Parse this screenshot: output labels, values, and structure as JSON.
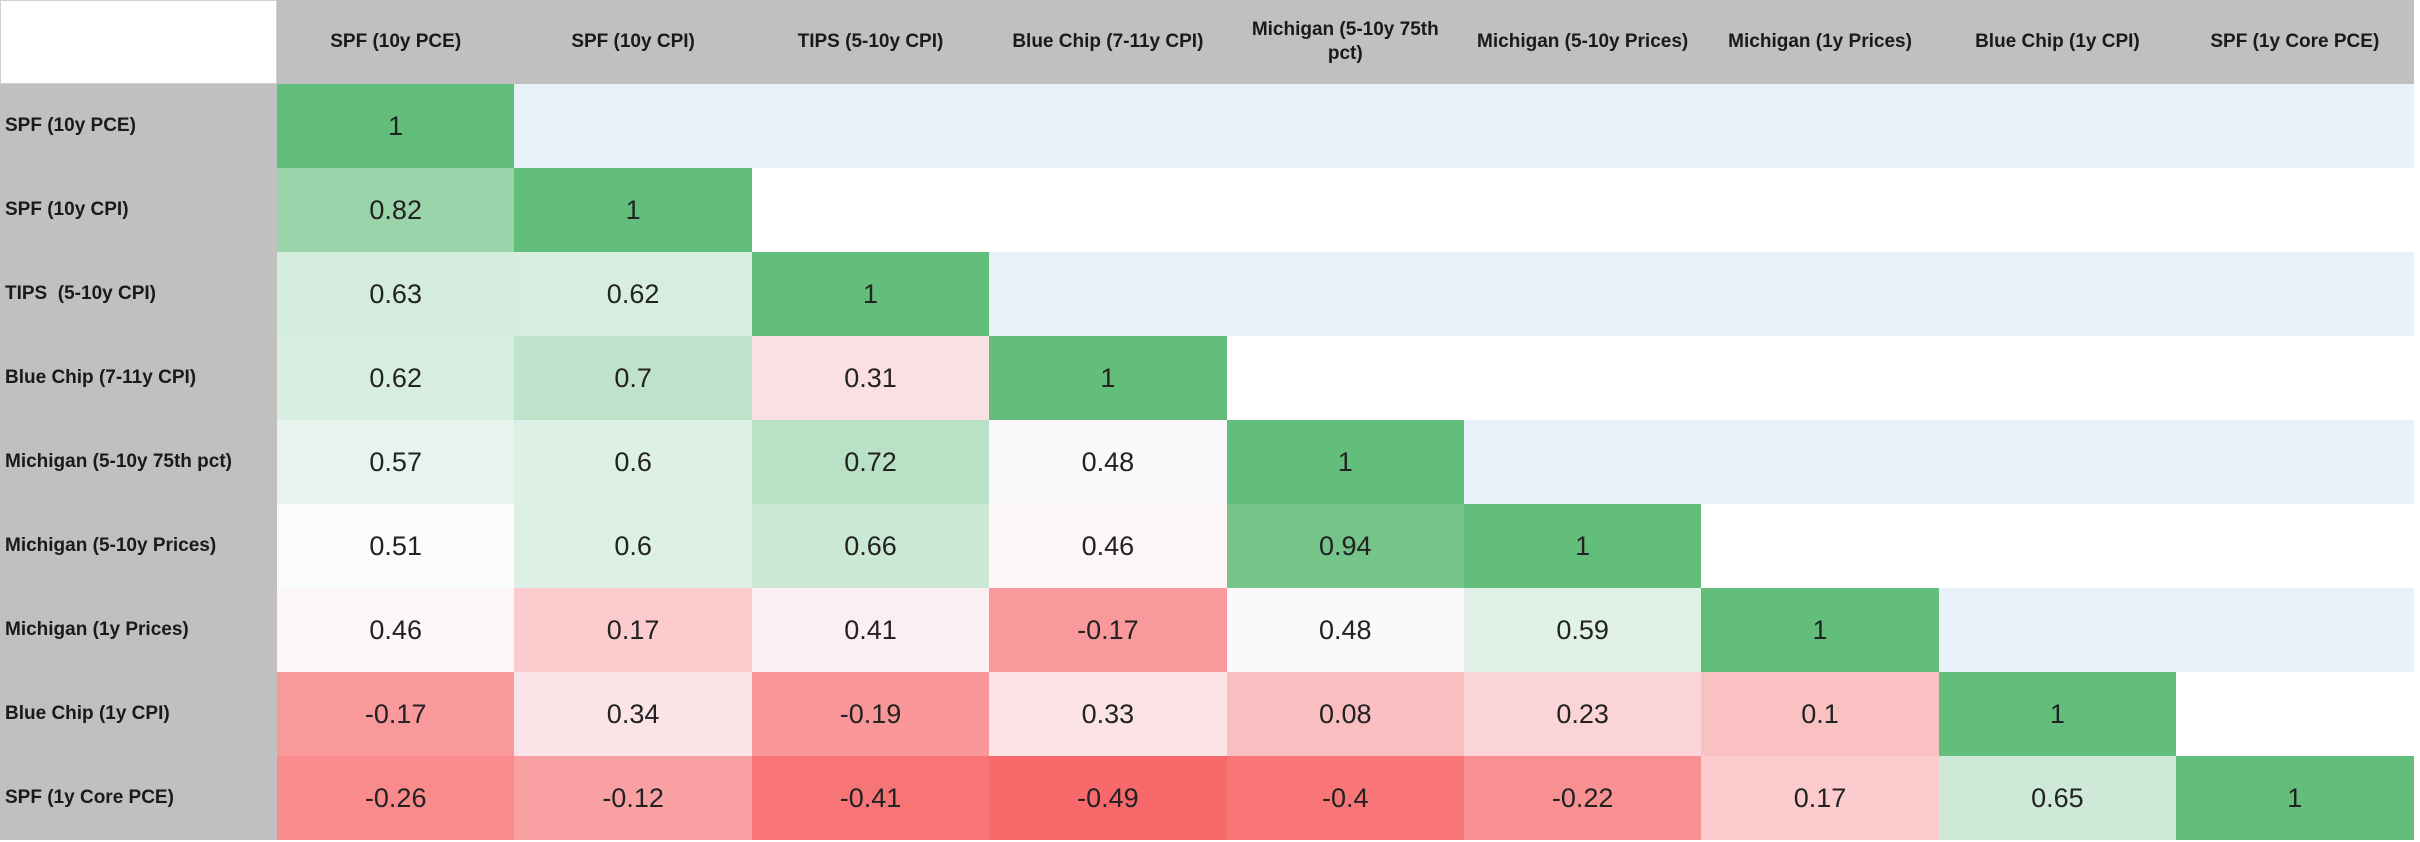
{
  "chart_data": {
    "type": "heatmap",
    "title": "",
    "variables": [
      "SPF (10y PCE)",
      "SPF (10y CPI)",
      "TIPS (5-10y CPI)",
      "Blue Chip (7-11y CPI)",
      "Michigan (5-10y 75th pct)",
      "Michigan (5-10y Prices)",
      "Michigan (1y Prices)",
      "Blue Chip (1y CPI)",
      "SPF (1y Core PCE)"
    ],
    "row_labels": [
      "SPF (10y PCE)",
      "SPF (10y CPI)",
      "TIPS  (5-10y CPI)",
      "Blue Chip (7-11y CPI)",
      "Michigan (5-10y 75th pct)",
      "Michigan (5-10y Prices)",
      "Michigan (1y Prices)",
      "Blue Chip (1y CPI)",
      "SPF (1y Core PCE)"
    ],
    "matrix": [
      [
        "1"
      ],
      [
        "0.82",
        "1"
      ],
      [
        "0.63",
        "0.62",
        "1"
      ],
      [
        "0.62",
        "0.7",
        "0.31",
        "1"
      ],
      [
        "0.57",
        "0.6",
        "0.72",
        "0.48",
        "1"
      ],
      [
        "0.51",
        "0.6",
        "0.66",
        "0.46",
        "0.94",
        "1"
      ],
      [
        "0.46",
        "0.17",
        "0.41",
        "-0.17",
        "0.48",
        "0.59",
        "1"
      ],
      [
        "-0.17",
        "0.34",
        "-0.19",
        "0.33",
        "0.08",
        "0.23",
        "0.1",
        "1"
      ],
      [
        "-0.26",
        "-0.12",
        "-0.41",
        "-0.49",
        "-0.4",
        "-0.22",
        "0.17",
        "0.65",
        "1"
      ]
    ],
    "color_scale": {
      "green": "#63be7b",
      "mid": "#fcfcff",
      "red": "#f8696b",
      "header_bg": "#c0c0c0",
      "band_blue": "#e8f0f8"
    }
  }
}
